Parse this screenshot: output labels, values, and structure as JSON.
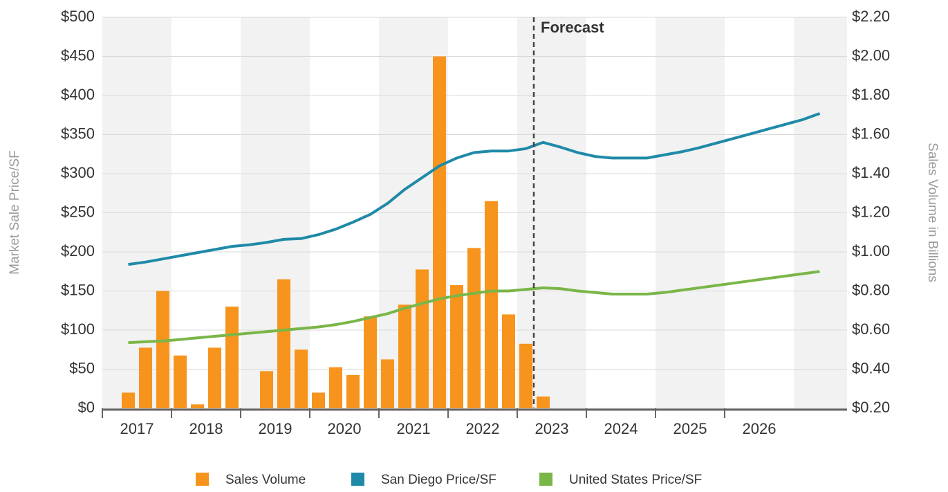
{
  "chart_data": {
    "type": "bar-line",
    "y_label": "Market Sale Price/SF",
    "y2_label": "Sales Volume in Billions",
    "forecast": {
      "x": 2023.24,
      "label": "Forecast"
    },
    "xlim": [
      2017,
      2027.77
    ],
    "xticks": [
      2017,
      2018,
      2019,
      2020,
      2021,
      2022,
      2023,
      2024,
      2025,
      2026
    ],
    "ylim": [
      0,
      500
    ],
    "yticks": [
      {
        "value": 0,
        "label": "$0"
      },
      {
        "value": 50,
        "label": "$50"
      },
      {
        "value": 100,
        "label": "$100"
      },
      {
        "value": 150,
        "label": "$150"
      },
      {
        "value": 200,
        "label": "$200"
      },
      {
        "value": 250,
        "label": "$250"
      },
      {
        "value": 300,
        "label": "$300"
      },
      {
        "value": 350,
        "label": "$350"
      },
      {
        "value": 400,
        "label": "$400"
      },
      {
        "value": 450,
        "label": "$450"
      },
      {
        "value": 500,
        "label": "$500"
      }
    ],
    "y2lim": [
      0.2,
      2.2
    ],
    "y2ticks": [
      {
        "value": 0.2,
        "label": "$0.20"
      },
      {
        "value": 0.4,
        "label": "$0.40"
      },
      {
        "value": 0.6,
        "label": "$0.60"
      },
      {
        "value": 0.8,
        "label": "$0.80"
      },
      {
        "value": 1.0,
        "label": "$1.00"
      },
      {
        "value": 1.2,
        "label": "$1.20"
      },
      {
        "value": 1.4,
        "label": "$1.40"
      },
      {
        "value": 1.6,
        "label": "$1.60"
      },
      {
        "value": 1.8,
        "label": "$1.80"
      },
      {
        "value": 2.0,
        "label": "$2.00"
      },
      {
        "value": 2.2,
        "label": "$2.20"
      }
    ],
    "grid": true,
    "x": [
      2017.375,
      2017.625,
      2017.875,
      2018.125,
      2018.375,
      2018.625,
      2018.875,
      2019.125,
      2019.375,
      2019.625,
      2019.875,
      2020.125,
      2020.375,
      2020.625,
      2020.875,
      2021.125,
      2021.375,
      2021.625,
      2021.875,
      2022.125,
      2022.375,
      2022.625,
      2022.875,
      2023.125,
      2023.375,
      2023.625,
      2023.875,
      2024.125,
      2024.375,
      2024.625,
      2024.875,
      2025.125,
      2025.375,
      2025.625,
      2025.875,
      2026.125,
      2026.375,
      2026.625,
      2026.875,
      2027.125,
      2027.375
    ],
    "series": [
      {
        "name": "Sales Volume",
        "kind": "bar",
        "axis": "y2",
        "color": "#f7941d",
        "values": [
          0.28,
          0.51,
          0.8,
          0.47,
          0.22,
          0.51,
          0.72,
          null,
          0.39,
          0.86,
          0.5,
          0.28,
          0.41,
          0.37,
          0.67,
          0.45,
          0.73,
          0.91,
          2.0,
          0.83,
          1.02,
          1.26,
          0.68,
          0.53,
          0.26,
          null,
          null,
          null,
          null,
          null,
          null,
          null,
          null,
          null,
          null,
          null,
          null,
          null,
          null,
          null,
          null
        ]
      },
      {
        "name": "San Diego Price/SF",
        "kind": "line",
        "color": "#1f8aa8",
        "values": [
          184,
          187,
          191,
          195,
          199,
          203,
          207,
          209,
          212,
          216,
          217,
          222,
          229,
          238,
          248,
          262,
          280,
          295,
          310,
          320,
          327,
          329,
          329,
          332,
          340,
          334,
          327,
          322,
          320,
          320,
          320,
          324,
          328,
          333,
          339,
          345,
          351,
          357,
          363,
          369,
          377
        ]
      },
      {
        "name": "United States Price/SF",
        "kind": "line",
        "color": "#7ab648",
        "values": [
          84,
          85,
          86,
          88,
          90,
          92,
          94,
          96,
          98,
          100,
          102,
          104,
          107,
          111,
          116,
          121,
          128,
          134,
          140,
          144,
          147,
          150,
          150,
          152,
          154,
          153,
          150,
          148,
          146,
          146,
          146,
          148,
          151,
          154,
          157,
          160,
          163,
          166,
          169,
          172,
          175
        ]
      }
    ]
  }
}
